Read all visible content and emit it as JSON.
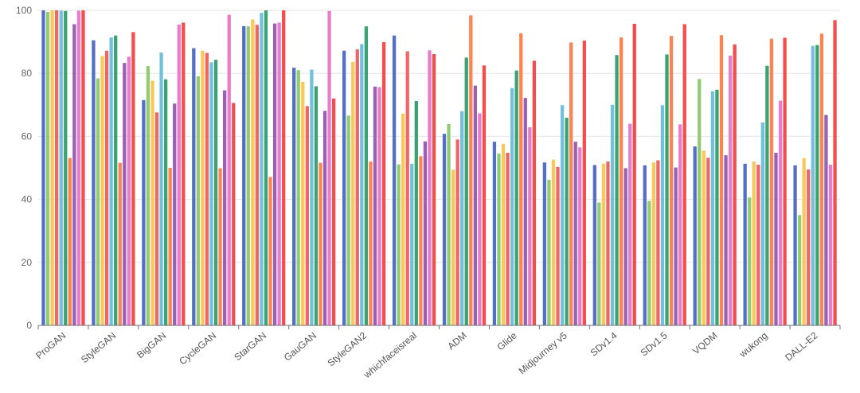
{
  "chart_data": {
    "type": "bar",
    "title": "",
    "xlabel": "",
    "ylabel": "",
    "ylim": [
      0,
      100
    ],
    "yticks": [
      0,
      20,
      40,
      60,
      80,
      100
    ],
    "grid": true,
    "legend": "none",
    "categories": [
      "ProGAN",
      "StyleGAN",
      "BigGAN",
      "CycleGAN",
      "StarGAN",
      "GauGAN",
      "StyleGAN2",
      "whichfaceisreal",
      "ADM",
      "Glide",
      "Midjourney v5",
      "SDv1.4",
      "SDv1.5",
      "VQDM",
      "wukong",
      "DALL-E2"
    ],
    "series": [
      {
        "color": "#5470c6",
        "values": [
          100.0,
          90.5,
          71.5,
          88.0,
          95.0,
          81.8,
          87.2,
          92.0,
          60.8,
          58.3,
          51.7,
          50.9,
          50.8,
          56.8,
          51.3,
          50.8
        ]
      },
      {
        "color": "#91cc75",
        "values": [
          99.5,
          78.4,
          82.3,
          79.1,
          94.9,
          81.0,
          66.6,
          51.1,
          63.9,
          54.5,
          46.2,
          39.0,
          39.5,
          78.2,
          40.6,
          35.0
        ]
      },
      {
        "color": "#fac858",
        "values": [
          100.0,
          85.5,
          77.7,
          87.2,
          97.1,
          77.3,
          83.6,
          67.2,
          49.4,
          57.6,
          52.6,
          51.3,
          51.7,
          55.5,
          52.0,
          53.1
        ]
      },
      {
        "color": "#ee6666",
        "values": [
          100.0,
          87.2,
          67.6,
          86.5,
          95.4,
          69.6,
          87.6,
          87.0,
          59.0,
          54.8,
          50.3,
          52.0,
          52.4,
          53.2,
          51.0,
          49.5
        ]
      },
      {
        "color": "#73c0de",
        "values": [
          99.9,
          91.4,
          86.6,
          83.5,
          99.2,
          81.2,
          89.3,
          51.3,
          68.0,
          75.3,
          69.9,
          70.0,
          69.9,
          74.3,
          64.4,
          88.7
        ]
      },
      {
        "color": "#3ba272",
        "values": [
          99.8,
          92.0,
          78.1,
          84.3,
          100.0,
          75.9,
          94.9,
          71.2,
          85.0,
          80.9,
          65.9,
          85.8,
          86.0,
          74.8,
          82.4,
          89.0
        ]
      },
      {
        "color": "#fc8452",
        "values": [
          53.1,
          51.6,
          50.0,
          49.9,
          47.1,
          51.6,
          52.0,
          53.7,
          98.4,
          92.7,
          89.8,
          91.4,
          91.9,
          92.1,
          91.0,
          92.6
        ]
      },
      {
        "color": "#9a60b4",
        "values": [
          95.6,
          83.3,
          70.4,
          74.6,
          95.8,
          68.1,
          75.8,
          58.4,
          76.1,
          72.2,
          58.3,
          49.9,
          50.1,
          54.0,
          54.8,
          66.8
        ]
      },
      {
        "color": "#ea7ccc",
        "values": [
          99.9,
          85.3,
          95.5,
          98.6,
          96.1,
          99.8,
          75.6,
          87.3,
          67.3,
          62.9,
          56.5,
          64.0,
          63.8,
          85.6,
          71.3,
          51.0
        ]
      },
      {
        "color": "#f54c4c",
        "values": [
          100.0,
          93.1,
          96.1,
          70.6,
          100.0,
          72.0,
          89.9,
          86.1,
          82.5,
          84.0,
          90.4,
          95.7,
          95.6,
          89.2,
          91.3,
          96.9
        ]
      }
    ]
  }
}
